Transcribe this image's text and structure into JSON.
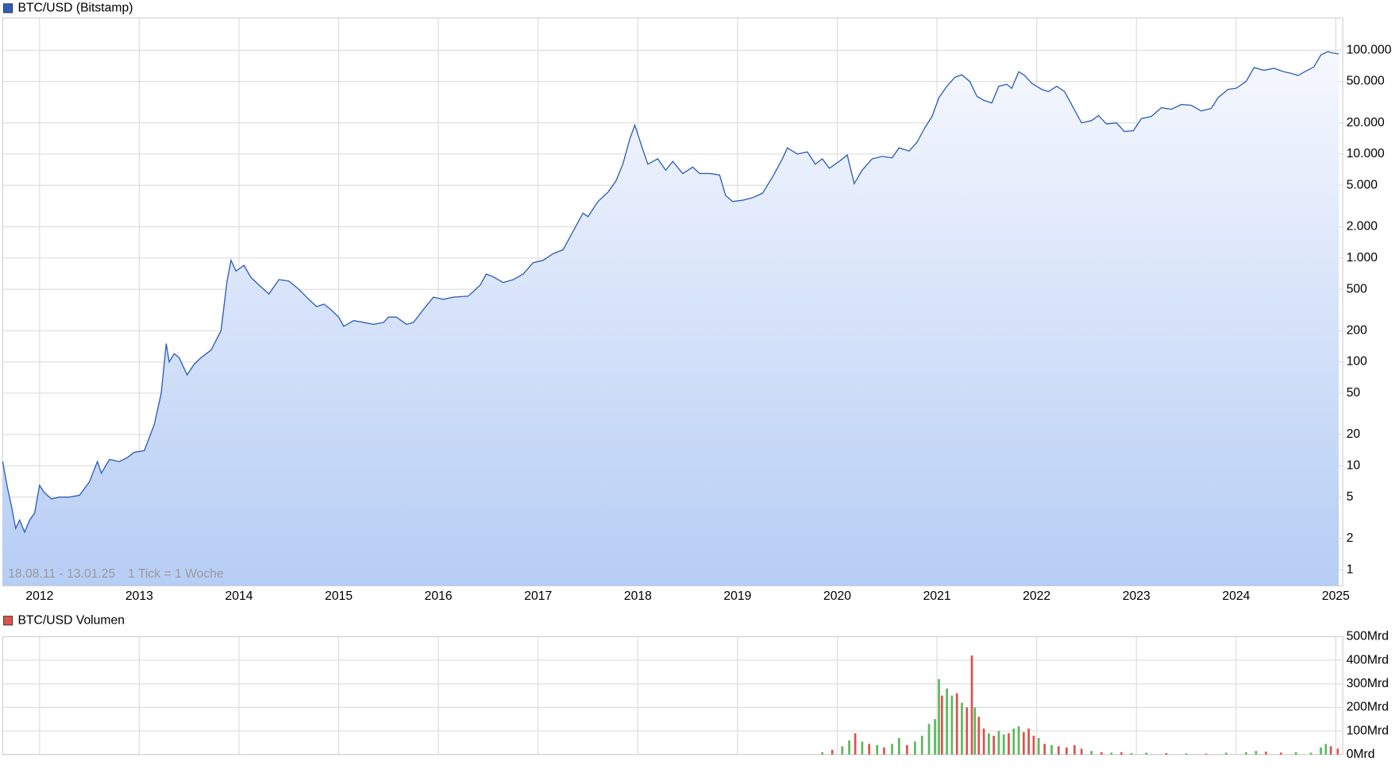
{
  "chart_data": [
    {
      "type": "area",
      "title": "BTC/USD (Bitstamp)",
      "color": "#2f5fb8",
      "log": true,
      "grid": true,
      "annotations": [
        "18.08.11 - 13.01.25",
        "1 Tick = 1 Woche"
      ],
      "xlim": [
        2011.63,
        2025.07
      ],
      "xticks": [
        2012,
        2013,
        2014,
        2015,
        2016,
        2017,
        2018,
        2019,
        2020,
        2021,
        2022,
        2023,
        2024,
        2025
      ],
      "ylim": [
        0.7,
        204000
      ],
      "yticks": [
        1,
        2,
        5,
        10,
        20,
        50,
        100,
        200,
        500,
        {
          "value": 1000,
          "label": "1.000"
        },
        {
          "value": 2000,
          "label": "2.000"
        },
        {
          "value": 5000,
          "label": "5.000"
        },
        {
          "value": 10000,
          "label": "10.000"
        },
        {
          "value": 20000,
          "label": "20.000"
        },
        {
          "value": 50000,
          "label": "50.000"
        },
        {
          "value": 100000,
          "label": "100.000"
        }
      ],
      "x": [
        2011.63,
        2011.68,
        2011.72,
        2011.76,
        2011.8,
        2011.85,
        2011.9,
        2011.95,
        2012.0,
        2012.05,
        2012.12,
        2012.2,
        2012.3,
        2012.4,
        2012.5,
        2012.58,
        2012.62,
        2012.7,
        2012.8,
        2012.88,
        2012.95,
        2013.05,
        2013.15,
        2013.22,
        2013.27,
        2013.3,
        2013.35,
        2013.4,
        2013.48,
        2013.55,
        2013.62,
        2013.72,
        2013.82,
        2013.88,
        2013.92,
        2013.97,
        2014.05,
        2014.12,
        2014.2,
        2014.3,
        2014.4,
        2014.5,
        2014.6,
        2014.7,
        2014.78,
        2014.85,
        2014.92,
        2015.0,
        2015.05,
        2015.15,
        2015.25,
        2015.35,
        2015.45,
        2015.5,
        2015.58,
        2015.68,
        2015.75,
        2015.85,
        2015.95,
        2016.05,
        2016.15,
        2016.3,
        2016.42,
        2016.48,
        2016.55,
        2016.65,
        2016.75,
        2016.85,
        2016.95,
        2017.05,
        2017.15,
        2017.25,
        2017.35,
        2017.45,
        2017.5,
        2017.6,
        2017.7,
        2017.78,
        2017.85,
        2017.92,
        2017.97,
        2018.05,
        2018.1,
        2018.2,
        2018.28,
        2018.35,
        2018.45,
        2018.55,
        2018.62,
        2018.72,
        2018.82,
        2018.88,
        2018.95,
        2019.05,
        2019.15,
        2019.25,
        2019.35,
        2019.45,
        2019.5,
        2019.6,
        2019.7,
        2019.78,
        2019.85,
        2019.92,
        2020.02,
        2020.1,
        2020.17,
        2020.25,
        2020.35,
        2020.45,
        2020.55,
        2020.62,
        2020.72,
        2020.8,
        2020.88,
        2020.95,
        2021.02,
        2021.1,
        2021.18,
        2021.25,
        2021.33,
        2021.4,
        2021.47,
        2021.55,
        2021.62,
        2021.7,
        2021.75,
        2021.82,
        2021.88,
        2021.95,
        2022.05,
        2022.12,
        2022.2,
        2022.28,
        2022.35,
        2022.45,
        2022.55,
        2022.62,
        2022.7,
        2022.8,
        2022.88,
        2022.97,
        2023.05,
        2023.15,
        2023.25,
        2023.35,
        2023.45,
        2023.55,
        2023.65,
        2023.75,
        2023.82,
        2023.92,
        2024.0,
        2024.1,
        2024.18,
        2024.28,
        2024.38,
        2024.48,
        2024.55,
        2024.62,
        2024.7,
        2024.78,
        2024.85,
        2024.92,
        2024.97,
        2025.03
      ],
      "values": [
        11,
        6,
        4,
        2.5,
        3,
        2.3,
        3,
        3.5,
        6.5,
        5.5,
        4.8,
        5,
        5,
        5.2,
        7,
        11,
        8.5,
        11.5,
        11,
        12,
        13.5,
        14,
        25,
        50,
        150,
        100,
        120,
        110,
        75,
        95,
        110,
        130,
        200,
        600,
        950,
        750,
        850,
        650,
        550,
        450,
        620,
        600,
        500,
        400,
        340,
        360,
        320,
        270,
        220,
        250,
        240,
        230,
        240,
        270,
        270,
        230,
        240,
        320,
        420,
        400,
        420,
        430,
        550,
        700,
        660,
        580,
        620,
        700,
        900,
        950,
        1100,
        1200,
        1800,
        2700,
        2500,
        3500,
        4300,
        5500,
        8000,
        14000,
        19000,
        11000,
        8000,
        9000,
        7000,
        8500,
        6500,
        7500,
        6500,
        6500,
        6300,
        4000,
        3500,
        3600,
        3800,
        4200,
        6000,
        9000,
        11500,
        10000,
        10500,
        8000,
        9000,
        7300,
        8500,
        9800,
        5200,
        7000,
        9000,
        9500,
        9200,
        11500,
        10700,
        13000,
        18000,
        23000,
        35000,
        45000,
        55000,
        58000,
        50000,
        36000,
        33000,
        31000,
        45000,
        47000,
        43000,
        62000,
        57000,
        48000,
        42000,
        40000,
        45000,
        40000,
        30000,
        20000,
        21000,
        23500,
        19500,
        20000,
        16500,
        16800,
        22000,
        23000,
        28000,
        27000,
        30000,
        29500,
        26000,
        27500,
        35000,
        42000,
        43000,
        50000,
        68000,
        64000,
        67000,
        62000,
        60000,
        57000,
        63000,
        69000,
        90000,
        97000,
        94000,
        92000
      ]
    },
    {
      "type": "bar",
      "title": "BTC/USD Volumen",
      "color": "#d9534f",
      "grid": true,
      "xlim": [
        2011.63,
        2025.07
      ],
      "xticks": [
        2012,
        2013,
        2014,
        2015,
        2016,
        2017,
        2018,
        2019,
        2020,
        2021,
        2022,
        2023,
        2024,
        2025
      ],
      "ylim": [
        0,
        500
      ],
      "yticks": [
        {
          "value": 0,
          "label": "0Mrd"
        },
        {
          "value": 100,
          "label": "100Mrd"
        },
        {
          "value": 200,
          "label": "200Mrd"
        },
        {
          "value": 300,
          "label": "300Mrd"
        },
        {
          "value": 400,
          "label": "400Mrd"
        },
        {
          "value": 500,
          "label": "500Mrd"
        }
      ],
      "x": [
        2019.85,
        2019.95,
        2020.05,
        2020.12,
        2020.18,
        2020.25,
        2020.32,
        2020.4,
        2020.47,
        2020.55,
        2020.62,
        2020.7,
        2020.78,
        2020.85,
        2020.92,
        2020.98,
        2021.02,
        2021.05,
        2021.1,
        2021.15,
        2021.2,
        2021.25,
        2021.3,
        2021.35,
        2021.38,
        2021.42,
        2021.47,
        2021.52,
        2021.57,
        2021.62,
        2021.67,
        2021.72,
        2021.77,
        2021.82,
        2021.87,
        2021.92,
        2021.97,
        2022.02,
        2022.08,
        2022.15,
        2022.22,
        2022.3,
        2022.38,
        2022.45,
        2022.55,
        2022.65,
        2022.75,
        2022.85,
        2022.95,
        2023.1,
        2023.3,
        2023.5,
        2023.7,
        2023.9,
        2024.1,
        2024.2,
        2024.3,
        2024.45,
        2024.6,
        2024.75,
        2024.85,
        2024.9,
        2024.95,
        2025.02
      ],
      "values": [
        10,
        20,
        35,
        60,
        90,
        55,
        45,
        40,
        30,
        45,
        70,
        40,
        55,
        80,
        130,
        150,
        320,
        250,
        280,
        250,
        260,
        220,
        200,
        420,
        200,
        160,
        110,
        90,
        80,
        100,
        85,
        90,
        110,
        120,
        95,
        110,
        80,
        70,
        45,
        40,
        35,
        30,
        40,
        25,
        15,
        10,
        8,
        10,
        6,
        8,
        6,
        5,
        4,
        8,
        10,
        15,
        12,
        8,
        10,
        8,
        30,
        45,
        35,
        25
      ],
      "colors": [
        "#5cb85c",
        "#d9534f",
        "#5cb85c",
        "#5cb85c",
        "#d9534f",
        "#5cb85c",
        "#d9534f",
        "#5cb85c",
        "#d9534f",
        "#5cb85c",
        "#5cb85c",
        "#d9534f",
        "#5cb85c",
        "#5cb85c",
        "#5cb85c",
        "#5cb85c",
        "#5cb85c",
        "#d9534f",
        "#5cb85c",
        "#5cb85c",
        "#d9534f",
        "#5cb85c",
        "#d9534f",
        "#d9534f",
        "#5cb85c",
        "#d9534f",
        "#d9534f",
        "#5cb85c",
        "#d9534f",
        "#5cb85c",
        "#5cb85c",
        "#d9534f",
        "#5cb85c",
        "#5cb85c",
        "#d9534f",
        "#d9534f",
        "#d9534f",
        "#5cb85c",
        "#d9534f",
        "#5cb85c",
        "#d9534f",
        "#d9534f",
        "#d9534f",
        "#d9534f",
        "#5cb85c",
        "#d9534f",
        "#5cb85c",
        "#d9534f",
        "#5cb85c",
        "#5cb85c",
        "#d9534f",
        "#5cb85c",
        "#d9534f",
        "#5cb85c",
        "#5cb85c",
        "#5cb85c",
        "#d9534f",
        "#d9534f",
        "#5cb85c",
        "#5cb85c",
        "#5cb85c",
        "#5cb85c",
        "#d9534f",
        "#d9534f"
      ]
    }
  ]
}
